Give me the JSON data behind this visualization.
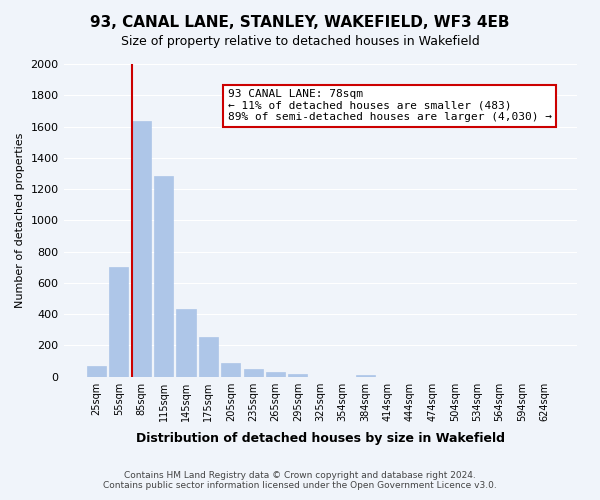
{
  "title": "93, CANAL LANE, STANLEY, WAKEFIELD, WF3 4EB",
  "subtitle": "Size of property relative to detached houses in Wakefield",
  "xlabel": "Distribution of detached houses by size in Wakefield",
  "ylabel": "Number of detached properties",
  "bin_labels": [
    "25sqm",
    "55sqm",
    "85sqm",
    "115sqm",
    "145sqm",
    "175sqm",
    "205sqm",
    "235sqm",
    "265sqm",
    "295sqm",
    "325sqm",
    "354sqm",
    "384sqm",
    "414sqm",
    "444sqm",
    "474sqm",
    "504sqm",
    "534sqm",
    "564sqm",
    "594sqm",
    "624sqm"
  ],
  "bar_values": [
    65,
    700,
    1635,
    1285,
    435,
    255,
    88,
    50,
    30,
    20,
    0,
    0,
    12,
    0,
    0,
    0,
    0,
    0,
    0,
    0,
    0
  ],
  "bar_color": "#aec6e8",
  "bar_edge_color": "#aec6e8",
  "vline_x": 2,
  "vline_color": "#cc0000",
  "annotation_text": "93 CANAL LANE: 78sqm\n← 11% of detached houses are smaller (483)\n89% of semi-detached houses are larger (4,030) →",
  "annotation_box_color": "#ffffff",
  "annotation_box_edge": "#cc0000",
  "ylim": [
    0,
    2000
  ],
  "yticks": [
    0,
    200,
    400,
    600,
    800,
    1000,
    1200,
    1400,
    1600,
    1800,
    2000
  ],
  "footer_line1": "Contains HM Land Registry data © Crown copyright and database right 2024.",
  "footer_line2": "Contains public sector information licensed under the Open Government Licence v3.0.",
  "bg_color": "#f0f4fa",
  "plot_bg_color": "#f0f4fa"
}
